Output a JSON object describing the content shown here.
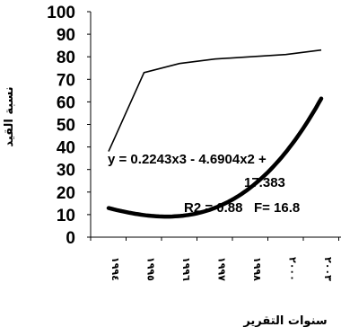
{
  "chart_data": {
    "type": "line",
    "title": "",
    "xlabel": "سنوات التقرير",
    "ylabel": "نسبة القيد",
    "categories": [
      "١٩٩٤",
      "١٩٩٥",
      "١٩٩٦",
      "١٩٩٧",
      "١٩٩٨",
      "٢٠٠٠",
      "٢٠٠٣"
    ],
    "ylim": [
      0,
      100
    ],
    "yticks": [
      0,
      10,
      20,
      30,
      40,
      50,
      60,
      70,
      80,
      90,
      100
    ],
    "grid": false,
    "series": [
      {
        "values": [
          38,
          73,
          77,
          79,
          80,
          81,
          83
        ],
        "color": "#000000"
      }
    ],
    "trendline": {
      "type": "polynomial",
      "coefficients": [
        17.383,
        -4.6904,
        0.2243
      ],
      "color": "#000000"
    },
    "annotations": {
      "equation_line1": "y = 0.2243x3 - 4.6904x2 +",
      "equation_line2": "17.383",
      "stats": "R2 = 0.88   F= 16.8"
    }
  }
}
